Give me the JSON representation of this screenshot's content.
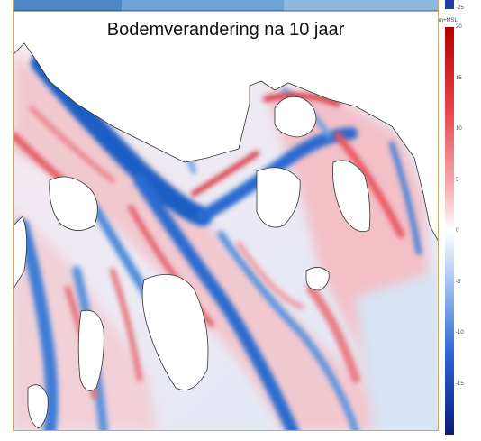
{
  "map": {
    "title": "Bodemverandering na 10 jaar"
  },
  "legend": {
    "unit": "m+MSL",
    "top_partial_label": "-25",
    "ticks": [
      "20",
      "15",
      "10",
      "5",
      "0",
      "-5",
      "-10",
      "-15"
    ],
    "range": [
      -20,
      20
    ],
    "colors": {
      "max": "#b30000",
      "mid": "#ffffff",
      "min": "#0a1a7a"
    }
  }
}
